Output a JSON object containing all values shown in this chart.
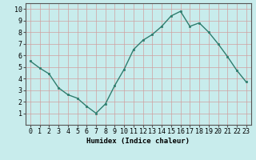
{
  "x": [
    0,
    1,
    2,
    3,
    4,
    5,
    6,
    7,
    8,
    9,
    10,
    11,
    12,
    13,
    14,
    15,
    16,
    17,
    18,
    19,
    20,
    21,
    22,
    23
  ],
  "y": [
    5.5,
    4.9,
    4.4,
    3.2,
    2.6,
    2.3,
    1.6,
    1.0,
    1.8,
    3.4,
    4.8,
    6.5,
    7.3,
    7.8,
    8.5,
    9.4,
    9.8,
    8.5,
    8.8,
    8.0,
    7.0,
    5.9,
    4.7,
    3.7
  ],
  "line_color": "#2e7d6e",
  "marker_color": "#2e7d6e",
  "bg_color": "#c8ecec",
  "grid_color": "#b0d8d8",
  "xlabel": "Humidex (Indice chaleur)",
  "xlim": [
    -0.5,
    23.5
  ],
  "ylim": [
    0,
    10.5
  ],
  "xticks": [
    0,
    1,
    2,
    3,
    4,
    5,
    6,
    7,
    8,
    9,
    10,
    11,
    12,
    13,
    14,
    15,
    16,
    17,
    18,
    19,
    20,
    21,
    22,
    23
  ],
  "yticks": [
    1,
    2,
    3,
    4,
    5,
    6,
    7,
    8,
    9,
    10
  ],
  "xlabel_fontsize": 6.5,
  "tick_fontsize": 6
}
